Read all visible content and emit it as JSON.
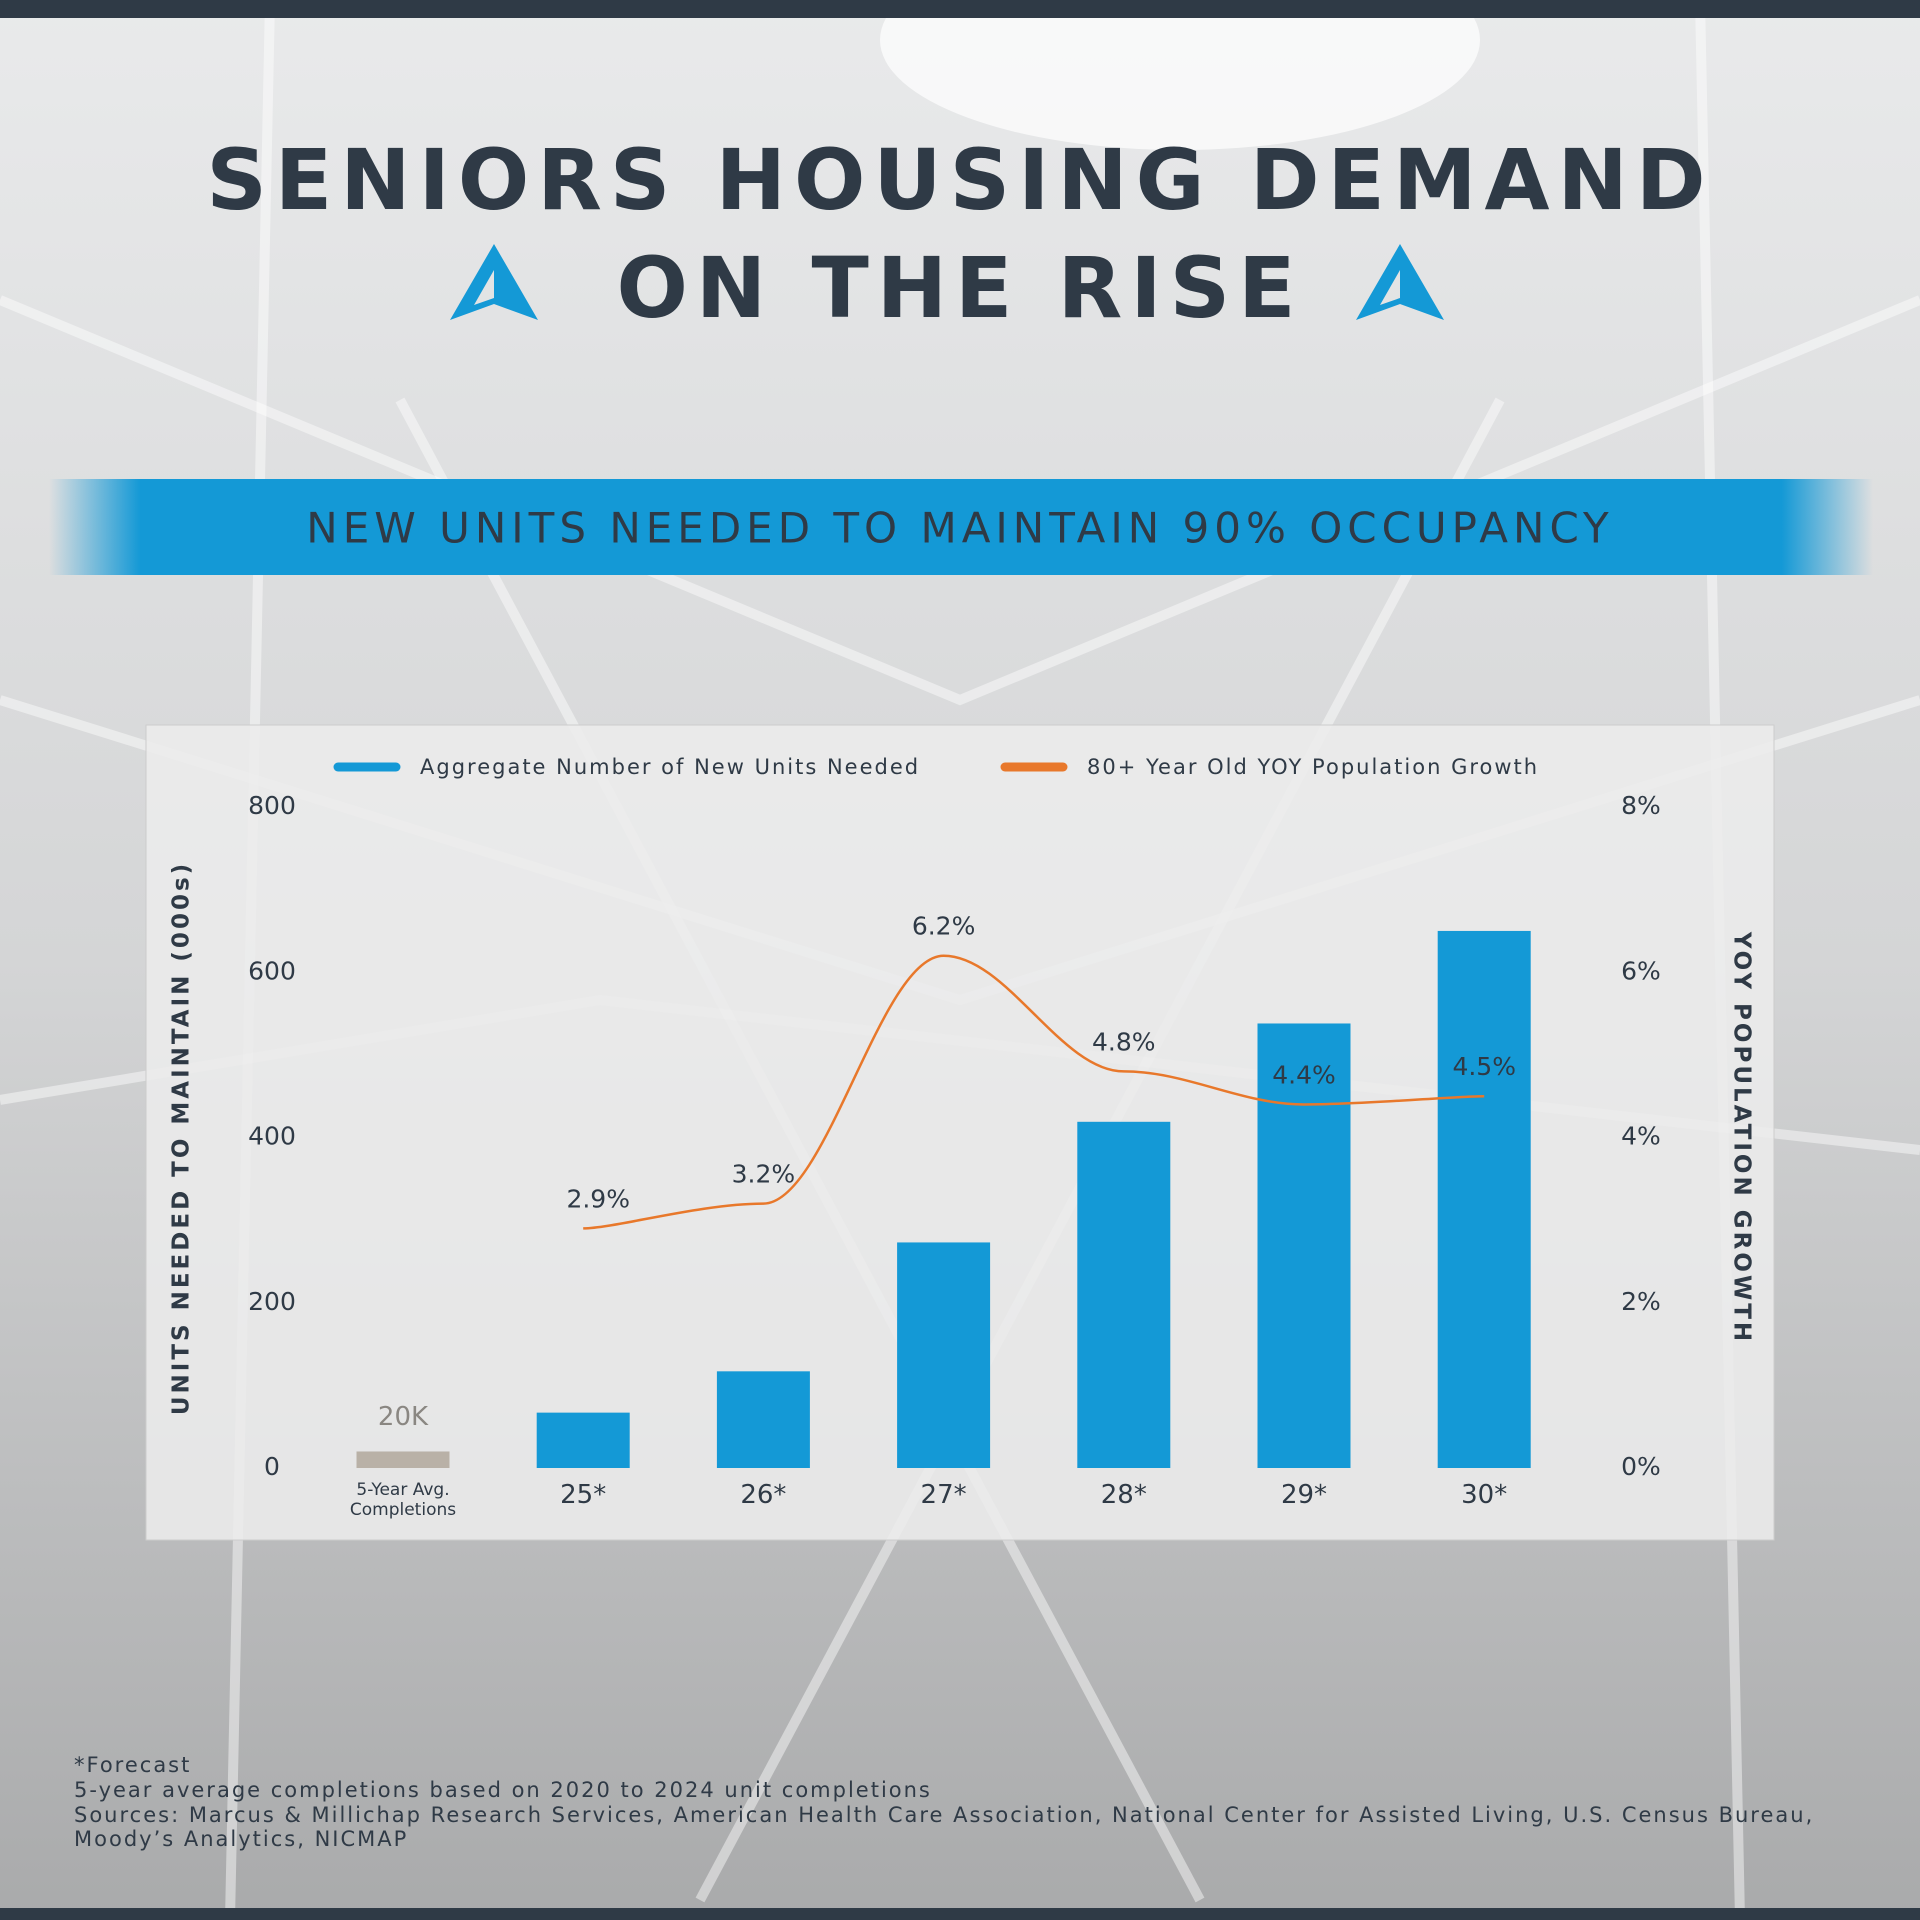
{
  "header": {
    "title_lines": [
      "SENIORS HOUSING DEMAND",
      "ON THE RISE"
    ],
    "banner": "NEW UNITS NEEDED TO MAINTAIN 90% OCCUPANCY"
  },
  "chart_data": {
    "type": "bar",
    "categories": [
      "5-Year Avg. Completions",
      "25*",
      "26*",
      "27*",
      "28*",
      "29*",
      "30*"
    ],
    "y_label": "UNITS NEEDED TO MAINTAIN (000s)",
    "y2_label": "YOY POPULATION GROWTH",
    "ylim": [
      0,
      800
    ],
    "yticks": [
      0,
      200,
      400,
      600,
      800
    ],
    "y2lim": [
      0,
      8
    ],
    "y2ticks": [
      {
        "value": 0,
        "label": "0%"
      },
      {
        "value": 2,
        "label": "2%"
      },
      {
        "value": 4,
        "label": "4%"
      },
      {
        "value": 6,
        "label": "6%"
      },
      {
        "value": 8,
        "label": "8%"
      }
    ],
    "grid": false,
    "series": [
      {
        "name": "Aggregate Number of New Units Needed",
        "type": "bar",
        "color": "#1499d6",
        "colors": [
          "#b9b1a7",
          "#1499d6",
          "#1499d6",
          "#1499d6",
          "#1499d6",
          "#1499d6",
          "#1499d6"
        ],
        "values": [
          20,
          67,
          117,
          273,
          419,
          538,
          650
        ],
        "value_labels": [
          "20K",
          null,
          null,
          null,
          null,
          null,
          null
        ]
      },
      {
        "name": "80+ Year Old YOY Population Growth",
        "type": "line",
        "color": "#e8782b",
        "axis": "y2",
        "values": [
          null,
          2.9,
          3.2,
          6.2,
          4.8,
          4.4,
          4.5
        ],
        "value_labels": [
          null,
          "2.9%",
          "3.2%",
          "6.2%",
          "4.8%",
          "4.4%",
          "4.5%"
        ]
      }
    ]
  },
  "footnotes": [
    "*Forecast",
    "5-year average completions based on 2020 to 2024 unit completions",
    "Sources: Marcus & Millichap Research Services, American Health Care Association, National Center for Assisted Living, U.S. Census Bureau,",
    "Moody’s Analytics, NICMAP"
  ]
}
